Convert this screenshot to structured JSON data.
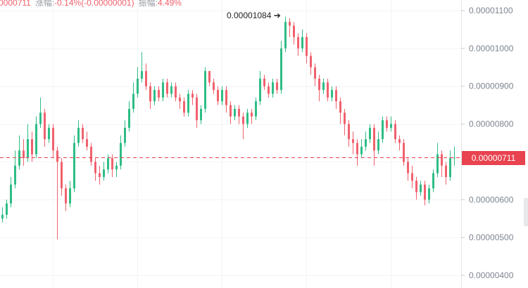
{
  "header": {
    "last_price_partial": "0000711",
    "change_label": "涨幅:",
    "change_value": "-0.14%(-0.00000001)",
    "amplitude_label": "振幅:",
    "amplitude_value": "4.49%"
  },
  "colors": {
    "up": "#2ebd85",
    "down": "#f0616d",
    "last_price_bg": "#e8434f"
  },
  "chart_data": {
    "type": "candlestick",
    "y_ticks": [
      "0.00001100",
      "0.00001000",
      "0.00000900",
      "0.00000800",
      "0.00000700",
      "0.00000600",
      "0.00000500",
      "0.00000400"
    ],
    "y_tick_values": [
      1.1e-05,
      1e-05,
      9e-06,
      8e-06,
      7e-06,
      6e-06,
      5e-06,
      4e-06
    ],
    "ylim": [
      4e-06,
      1.1e-05
    ],
    "last_price": "0.00000711",
    "last_price_value": 7.11e-06,
    "max_annotation": "0.00001084",
    "candles_ohlc": [
      [
        5.5e-06,
        5.8e-06,
        5.4e-06,
        5.6e-06
      ],
      [
        5.6e-06,
        6e-06,
        5.5e-06,
        5.9e-06
      ],
      [
        5.9e-06,
        6.6e-06,
        5.8e-06,
        6.4e-06
      ],
      [
        6.4e-06,
        7.3e-06,
        6.3e-06,
        6.9e-06
      ],
      [
        6.9e-06,
        7.7e-06,
        6.8e-06,
        7.3e-06
      ],
      [
        7.3e-06,
        7.6e-06,
        6.9e-06,
        7.1e-06
      ],
      [
        7.1e-06,
        8e-06,
        7e-06,
        7.6e-06
      ],
      [
        7.6e-06,
        7.8e-06,
        7e-06,
        7.2e-06
      ],
      [
        7.2e-06,
        8.2e-06,
        7.1e-06,
        8e-06
      ],
      [
        8e-06,
        8.7e-06,
        7.9e-06,
        8.3e-06
      ],
      [
        8.3e-06,
        8.4e-06,
        7.4e-06,
        7.6e-06
      ],
      [
        7.6e-06,
        8e-06,
        7.5e-06,
        7.9e-06
      ],
      [
        7.9e-06,
        8e-06,
        7.1e-06,
        7.3e-06
      ],
      [
        7.3e-06,
        7.4e-06,
        4.95e-06,
        7e-06
      ],
      [
        7e-06,
        7.1e-06,
        6.1e-06,
        6.3e-06
      ],
      [
        6.3e-06,
        6.4e-06,
        5.7e-06,
        5.9e-06
      ],
      [
        5.9e-06,
        6.5e-06,
        5.8e-06,
        6.3e-06
      ],
      [
        6.3e-06,
        7.7e-06,
        6.2e-06,
        7.5e-06
      ],
      [
        7.5e-06,
        8.1e-06,
        7.4e-06,
        7.9e-06
      ],
      [
        7.9e-06,
        8e-06,
        7.5e-06,
        7.6e-06
      ],
      [
        7.6e-06,
        7.8e-06,
        7.3e-06,
        7.4e-06
      ],
      [
        7.4e-06,
        7.5e-06,
        6.9e-06,
        7e-06
      ],
      [
        7e-06,
        7.1e-06,
        6.5e-06,
        6.7e-06
      ],
      [
        6.7e-06,
        6.9e-06,
        6.4e-06,
        6.6e-06
      ],
      [
        6.6e-06,
        7e-06,
        6.5e-06,
        6.8e-06
      ],
      [
        6.8e-06,
        7.2e-06,
        6.7e-06,
        7.1e-06
      ],
      [
        7.1e-06,
        7.2e-06,
        6.6e-06,
        6.8e-06
      ],
      [
        6.8e-06,
        7e-06,
        6.6e-06,
        6.9e-06
      ],
      [
        6.9e-06,
        7.7e-06,
        6.8e-06,
        7.5e-06
      ],
      [
        7.5e-06,
        8.1e-06,
        7.4e-06,
        7.9e-06
      ],
      [
        7.9e-06,
        8.6e-06,
        7.8e-06,
        8.4e-06
      ],
      [
        8.4e-06,
        9.1e-06,
        8.3e-06,
        8.8e-06
      ],
      [
        8.8e-06,
        9.5e-06,
        8.7e-06,
        9.2e-06
      ],
      [
        9.2e-06,
        9.9e-06,
        9.1e-06,
        9.4e-06
      ],
      [
        9.4e-06,
        9.6e-06,
        8.9e-06,
        9e-06
      ],
      [
        9e-06,
        9.1e-06,
        8.4e-06,
        8.6e-06
      ],
      [
        8.6e-06,
        9e-06,
        8.5e-06,
        8.9e-06
      ],
      [
        8.9e-06,
        9e-06,
        8.6e-06,
        8.7e-06
      ],
      [
        8.7e-06,
        9.2e-06,
        8.6e-06,
        9.1e-06
      ],
      [
        9.1e-06,
        9.2e-06,
        8.7e-06,
        8.8e-06
      ],
      [
        8.8e-06,
        9.1e-06,
        8.7e-06,
        9e-06
      ],
      [
        9e-06,
        9.1e-06,
        8.6e-06,
        8.7e-06
      ],
      [
        8.7e-06,
        8.8e-06,
        8.4e-06,
        8.6e-06
      ],
      [
        8.6e-06,
        8.7e-06,
        8.2e-06,
        8.3e-06
      ],
      [
        8.3e-06,
        8.9e-06,
        8.2e-06,
        8.8e-06
      ],
      [
        8.8e-06,
        8.9e-06,
        8.5e-06,
        8.7e-06
      ],
      [
        8.7e-06,
        8.8e-06,
        7.9e-06,
        8.1e-06
      ],
      [
        8.1e-06,
        8.5e-06,
        8e-06,
        8.4e-06
      ],
      [
        8.4e-06,
        9.5e-06,
        8.3e-06,
        9.4e-06
      ],
      [
        9.4e-06,
        9.4e-06,
        9e-06,
        9.1e-06
      ],
      [
        9.1e-06,
        9.2e-06,
        8.8e-06,
        8.9e-06
      ],
      [
        8.9e-06,
        9e-06,
        8.5e-06,
        8.6e-06
      ],
      [
        8.6e-06,
        9e-06,
        8.5e-06,
        8.9e-06
      ],
      [
        8.9e-06,
        9e-06,
        8.3e-06,
        8.5e-06
      ],
      [
        8.5e-06,
        8.6e-06,
        8e-06,
        8.2e-06
      ],
      [
        8.2e-06,
        8.5e-06,
        8.1e-06,
        8.4e-06
      ],
      [
        8.4e-06,
        8.5e-06,
        8e-06,
        8.2e-06
      ],
      [
        8.2e-06,
        8.3e-06,
        7.6e-06,
        8e-06
      ],
      [
        8e-06,
        8.4e-06,
        7.9e-06,
        8.3e-06
      ],
      [
        8.3e-06,
        8.4e-06,
        8e-06,
        8.2e-06
      ],
      [
        8.2e-06,
        8.7e-06,
        8.1e-06,
        8.6e-06
      ],
      [
        8.6e-06,
        9.4e-06,
        8.5e-06,
        9.2e-06
      ],
      [
        9.2e-06,
        9.3e-06,
        8.9e-06,
        9e-06
      ],
      [
        9e-06,
        9.1e-06,
        8.7e-06,
        8.8e-06
      ],
      [
        8.8e-06,
        9.2e-06,
        8.7e-06,
        9.1e-06
      ],
      [
        9.1e-06,
        9.2e-06,
        8.8e-06,
        8.9e-06
      ],
      [
        8.9e-06,
        1.02e-05,
        8.8e-06,
        1e-05
      ],
      [
        1e-05,
        1.084e-05,
        9.9e-06,
        1.07e-05
      ],
      [
        1.07e-05,
        1.08e-05,
        1.03e-05,
        1.06e-05
      ],
      [
        1.06e-05,
        1.07e-05,
        1.01e-05,
        1.03e-05
      ],
      [
        1.03e-05,
        1.04e-05,
        9.8e-06,
        1e-05
      ],
      [
        1e-05,
        1.05e-05,
        9.9e-06,
        1.03e-05
      ],
      [
        1.03e-05,
        1.04e-05,
        9.6e-06,
        9.8e-06
      ],
      [
        9.8e-06,
        9.9e-06,
        9.3e-06,
        9.5e-06
      ],
      [
        9.5e-06,
        9.6e-06,
        9e-06,
        9.2e-06
      ],
      [
        9.2e-06,
        9.3e-06,
        8.6e-06,
        8.9e-06
      ],
      [
        8.9e-06,
        9.2e-06,
        8.8e-06,
        9.1e-06
      ],
      [
        9.1e-06,
        9.2e-06,
        8.6e-06,
        8.7e-06
      ],
      [
        8.7e-06,
        9e-06,
        8.6e-06,
        8.9e-06
      ],
      [
        8.9e-06,
        9e-06,
        8.4e-06,
        8.6e-06
      ],
      [
        8.6e-06,
        8.7e-06,
        8e-06,
        8.3e-06
      ],
      [
        8.3e-06,
        8.4e-06,
        7.7e-06,
        8e-06
      ],
      [
        8e-06,
        8.1e-06,
        7.4e-06,
        7.6e-06
      ],
      [
        7.6e-06,
        7.8e-06,
        7.2e-06,
        7.5e-06
      ],
      [
        7.5e-06,
        7.6e-06,
        6.9e-06,
        7.2e-06
      ],
      [
        7.2e-06,
        7.6e-06,
        7.1e-06,
        7.4e-06
      ],
      [
        7.4e-06,
        7.8e-06,
        7.3e-06,
        7.6e-06
      ],
      [
        7.6e-06,
        8e-06,
        7.5e-06,
        7.9e-06
      ],
      [
        7.9e-06,
        8e-06,
        6.9e-06,
        7.3e-06
      ],
      [
        7.3e-06,
        7.8e-06,
        7.2e-06,
        7.6e-06
      ],
      [
        7.6e-06,
        8.2e-06,
        7.5e-06,
        8.1e-06
      ],
      [
        8.1e-06,
        8.2e-06,
        7.8e-06,
        7.9e-06
      ],
      [
        7.9e-06,
        8.2e-06,
        7.8e-06,
        8e-06
      ],
      [
        8e-06,
        8.1e-06,
        7.5e-06,
        7.6e-06
      ],
      [
        7.6e-06,
        7.7e-06,
        7.3e-06,
        7.5e-06
      ],
      [
        7.5e-06,
        7.6e-06,
        6.9e-06,
        7e-06
      ],
      [
        7e-06,
        7.1e-06,
        6.5e-06,
        6.7e-06
      ],
      [
        6.7e-06,
        6.9e-06,
        6.3e-06,
        6.5e-06
      ],
      [
        6.5e-06,
        6.6e-06,
        6e-06,
        6.2e-06
      ],
      [
        6.2e-06,
        6.5e-06,
        6.1e-06,
        6.4e-06
      ],
      [
        6.4e-06,
        6.5e-06,
        5.85e-06,
        6e-06
      ],
      [
        6e-06,
        6.4e-06,
        5.9e-06,
        6.3e-06
      ],
      [
        6.3e-06,
        6.8e-06,
        6.2e-06,
        6.7e-06
      ],
      [
        6.7e-06,
        7.5e-06,
        6.6e-06,
        7.2e-06
      ],
      [
        7.2e-06,
        7.3e-06,
        6.6e-06,
        6.9e-06
      ],
      [
        6.9e-06,
        7e-06,
        6.4e-06,
        6.6e-06
      ],
      [
        6.6e-06,
        7.3e-06,
        6.5e-06,
        7.1e-06
      ],
      [
        7.1e-06,
        7.4e-06,
        6.9e-06,
        7.11e-06
      ]
    ]
  }
}
